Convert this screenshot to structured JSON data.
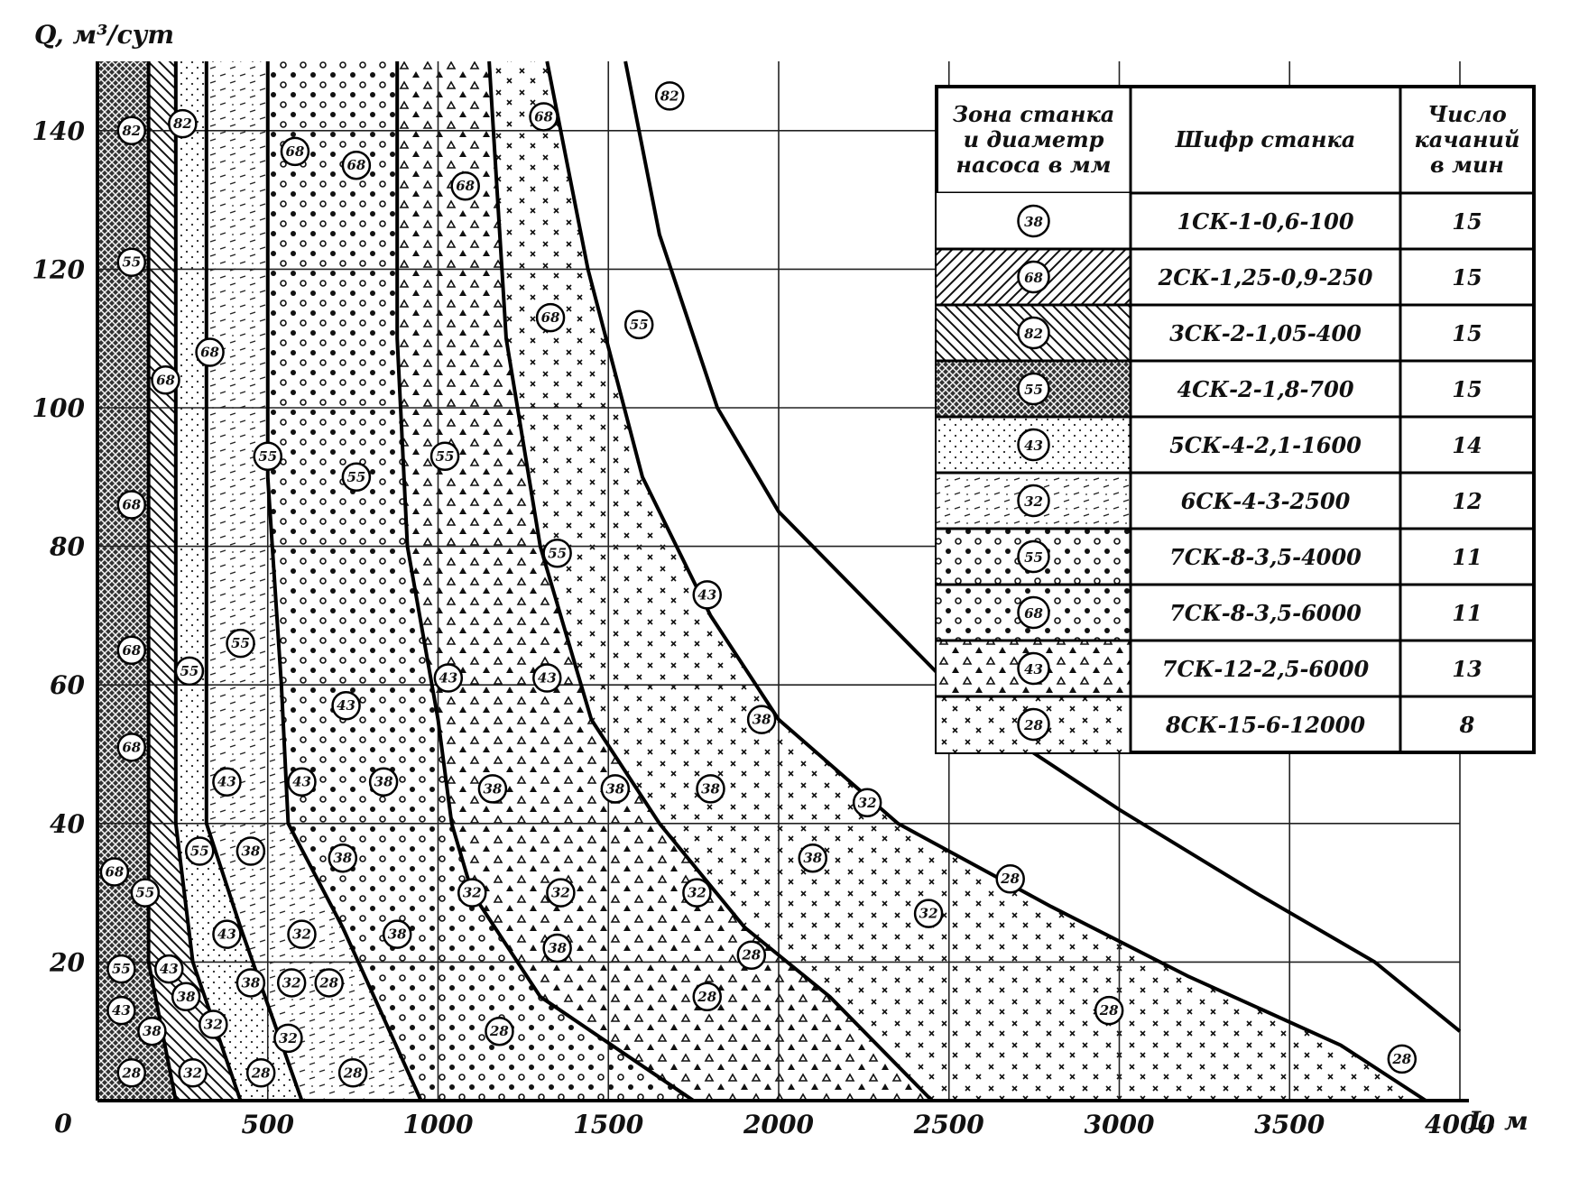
{
  "chart_data": {
    "type": "area",
    "title": "",
    "ylabel": "Q, м³/сут",
    "xlabel": "L, м",
    "origin_label": "0",
    "xlim": [
      0,
      4000
    ],
    "ylim": [
      0,
      150
    ],
    "x_ticks": [
      {
        "value": 500,
        "label": "500"
      },
      {
        "value": 1000,
        "label": "1000"
      },
      {
        "value": 1500,
        "label": "1500"
      },
      {
        "value": 2000,
        "label": "2000"
      },
      {
        "value": 2500,
        "label": "2500"
      },
      {
        "value": 3000,
        "label": "3000"
      },
      {
        "value": 3500,
        "label": "3500"
      },
      {
        "value": 4000,
        "label": "4000"
      }
    ],
    "y_ticks": [
      {
        "value": 20,
        "label": "20"
      },
      {
        "value": 40,
        "label": "40"
      },
      {
        "value": 60,
        "label": "60"
      },
      {
        "value": 80,
        "label": "80"
      },
      {
        "value": 100,
        "label": "100"
      },
      {
        "value": 120,
        "label": "120"
      },
      {
        "value": 140,
        "label": "140"
      }
    ],
    "grid": true,
    "boundaries": [
      {
        "pattern": "cross",
        "points": [
          [
            150,
            150
          ],
          [
            150,
            20
          ],
          [
            230,
            0
          ]
        ]
      },
      {
        "pattern": "hatch_l",
        "points": [
          [
            230,
            150
          ],
          [
            230,
            40
          ],
          [
            280,
            20
          ],
          [
            420,
            0
          ]
        ]
      },
      {
        "pattern": "dots_f",
        "points": [
          [
            320,
            150
          ],
          [
            320,
            40
          ],
          [
            420,
            25
          ],
          [
            600,
            0
          ]
        ]
      },
      {
        "pattern": "dash",
        "points": [
          [
            500,
            150
          ],
          [
            500,
            90
          ],
          [
            540,
            60
          ],
          [
            560,
            40
          ],
          [
            720,
            25
          ],
          [
            950,
            0
          ]
        ]
      },
      {
        "pattern": "circ",
        "points": [
          [
            880,
            150
          ],
          [
            880,
            110
          ],
          [
            910,
            80
          ],
          [
            1000,
            55
          ],
          [
            1040,
            40
          ],
          [
            1100,
            30
          ],
          [
            1300,
            15
          ],
          [
            1750,
            0
          ]
        ]
      },
      {
        "pattern": "tri",
        "points": [
          [
            1150,
            150
          ],
          [
            1200,
            110
          ],
          [
            1300,
            80
          ],
          [
            1450,
            55
          ],
          [
            1650,
            40
          ],
          [
            1900,
            25
          ],
          [
            2150,
            15
          ],
          [
            2450,
            0
          ]
        ]
      },
      {
        "pattern": "xs",
        "points": [
          [
            1320,
            150
          ],
          [
            1440,
            120
          ],
          [
            1600,
            90
          ],
          [
            1800,
            70
          ],
          [
            2000,
            55
          ],
          [
            2350,
            40
          ],
          [
            2800,
            28
          ],
          [
            3200,
            18
          ],
          [
            3650,
            8
          ],
          [
            3900,
            0
          ]
        ]
      },
      {
        "pattern": "blank",
        "points": [
          [
            1550,
            150
          ],
          [
            1650,
            125
          ],
          [
            1820,
            100
          ],
          [
            2000,
            85
          ],
          [
            2300,
            70
          ],
          [
            2600,
            55
          ],
          [
            3000,
            42
          ],
          [
            3400,
            30
          ],
          [
            3750,
            20
          ],
          [
            4000,
            10
          ]
        ]
      }
    ],
    "zone_labels": [
      {
        "text": "82",
        "x": 1680,
        "y": 145
      },
      {
        "text": "68",
        "x": 1310,
        "y": 142
      },
      {
        "text": "68",
        "x": 1080,
        "y": 132
      },
      {
        "text": "68",
        "x": 760,
        "y": 135
      },
      {
        "text": "68",
        "x": 580,
        "y": 137
      },
      {
        "text": "82",
        "x": 250,
        "y": 141
      },
      {
        "text": "82",
        "x": 100,
        "y": 140
      },
      {
        "text": "55",
        "x": 100,
        "y": 121
      },
      {
        "text": "68",
        "x": 1330,
        "y": 113
      },
      {
        "text": "55",
        "x": 1590,
        "y": 112
      },
      {
        "text": "68",
        "x": 330,
        "y": 108
      },
      {
        "text": "68",
        "x": 200,
        "y": 104
      },
      {
        "text": "55",
        "x": 500,
        "y": 93
      },
      {
        "text": "55",
        "x": 1020,
        "y": 93
      },
      {
        "text": "55",
        "x": 760,
        "y": 90
      },
      {
        "text": "68",
        "x": 100,
        "y": 86
      },
      {
        "text": "55",
        "x": 1350,
        "y": 79
      },
      {
        "text": "43",
        "x": 1790,
        "y": 73
      },
      {
        "text": "55",
        "x": 420,
        "y": 66
      },
      {
        "text": "68",
        "x": 100,
        "y": 65
      },
      {
        "text": "55",
        "x": 270,
        "y": 62
      },
      {
        "text": "43",
        "x": 1030,
        "y": 61
      },
      {
        "text": "43",
        "x": 1320,
        "y": 61
      },
      {
        "text": "43",
        "x": 730,
        "y": 57
      },
      {
        "text": "38",
        "x": 1950,
        "y": 55
      },
      {
        "text": "68",
        "x": 100,
        "y": 51
      },
      {
        "text": "43",
        "x": 380,
        "y": 46
      },
      {
        "text": "43",
        "x": 600,
        "y": 46
      },
      {
        "text": "38",
        "x": 840,
        "y": 46
      },
      {
        "text": "38",
        "x": 1160,
        "y": 45
      },
      {
        "text": "38",
        "x": 1520,
        "y": 45
      },
      {
        "text": "38",
        "x": 1800,
        "y": 45
      },
      {
        "text": "32",
        "x": 2260,
        "y": 43
      },
      {
        "text": "68",
        "x": 50,
        "y": 33
      },
      {
        "text": "55",
        "x": 140,
        "y": 30
      },
      {
        "text": "55",
        "x": 300,
        "y": 36
      },
      {
        "text": "38",
        "x": 450,
        "y": 36
      },
      {
        "text": "38",
        "x": 720,
        "y": 35
      },
      {
        "text": "38",
        "x": 2100,
        "y": 35
      },
      {
        "text": "32",
        "x": 1100,
        "y": 30
      },
      {
        "text": "32",
        "x": 1360,
        "y": 30
      },
      {
        "text": "32",
        "x": 1760,
        "y": 30
      },
      {
        "text": "28",
        "x": 2680,
        "y": 32
      },
      {
        "text": "32",
        "x": 2440,
        "y": 27
      },
      {
        "text": "43",
        "x": 380,
        "y": 24
      },
      {
        "text": "32",
        "x": 600,
        "y": 24
      },
      {
        "text": "38",
        "x": 880,
        "y": 24
      },
      {
        "text": "38",
        "x": 1350,
        "y": 22
      },
      {
        "text": "28",
        "x": 1920,
        "y": 21
      },
      {
        "text": "55",
        "x": 70,
        "y": 19
      },
      {
        "text": "43",
        "x": 210,
        "y": 19
      },
      {
        "text": "38",
        "x": 450,
        "y": 17
      },
      {
        "text": "32",
        "x": 570,
        "y": 17
      },
      {
        "text": "28",
        "x": 680,
        "y": 17
      },
      {
        "text": "43",
        "x": 70,
        "y": 13
      },
      {
        "text": "38",
        "x": 260,
        "y": 15
      },
      {
        "text": "28",
        "x": 1790,
        "y": 15
      },
      {
        "text": "28",
        "x": 2970,
        "y": 13
      },
      {
        "text": "38",
        "x": 160,
        "y": 10
      },
      {
        "text": "32",
        "x": 340,
        "y": 11
      },
      {
        "text": "32",
        "x": 560,
        "y": 9
      },
      {
        "text": "28",
        "x": 1180,
        "y": 10
      },
      {
        "text": "28",
        "x": 100,
        "y": 4
      },
      {
        "text": "32",
        "x": 280,
        "y": 4
      },
      {
        "text": "28",
        "x": 480,
        "y": 4
      },
      {
        "text": "28",
        "x": 750,
        "y": 4
      },
      {
        "text": "28",
        "x": 3830,
        "y": 6
      }
    ]
  },
  "legend_table": {
    "headers": [
      "Зона станка и диаметр насоса в мм",
      "Шифр станка",
      "Число качаний в мин"
    ],
    "rows": [
      {
        "pattern": "blank",
        "zone": "38",
        "code": "1СК-1-0,6-100",
        "strokes": "15"
      },
      {
        "pattern": "hatch_r",
        "zone": "68",
        "code": "2СК-1,25-0,9-250",
        "strokes": "15"
      },
      {
        "pattern": "hatch_l",
        "zone": "82",
        "code": "3СК-2-1,05-400",
        "strokes": "15"
      },
      {
        "pattern": "cross",
        "zone": "55",
        "code": "4СК-2-1,8-700",
        "strokes": "15"
      },
      {
        "pattern": "dots_f",
        "zone": "43",
        "code": "5СК-4-2,1-1600",
        "strokes": "14"
      },
      {
        "pattern": "dash",
        "zone": "32",
        "code": "6СК-4-3-2500",
        "strokes": "12"
      },
      {
        "pattern": "circ",
        "zone": "55",
        "code": "7СК-8-3,5-4000",
        "strokes": "11"
      },
      {
        "pattern": "circ",
        "zone": "68",
        "code": "7СК-8-3,5-6000",
        "strokes": "11"
      },
      {
        "pattern": "tri",
        "zone": "43",
        "code": "7СК-12-2,5-6000",
        "strokes": "13"
      },
      {
        "pattern": "xs",
        "zone": "28",
        "code": "8СК-15-6-12000",
        "strokes": "8"
      }
    ]
  }
}
